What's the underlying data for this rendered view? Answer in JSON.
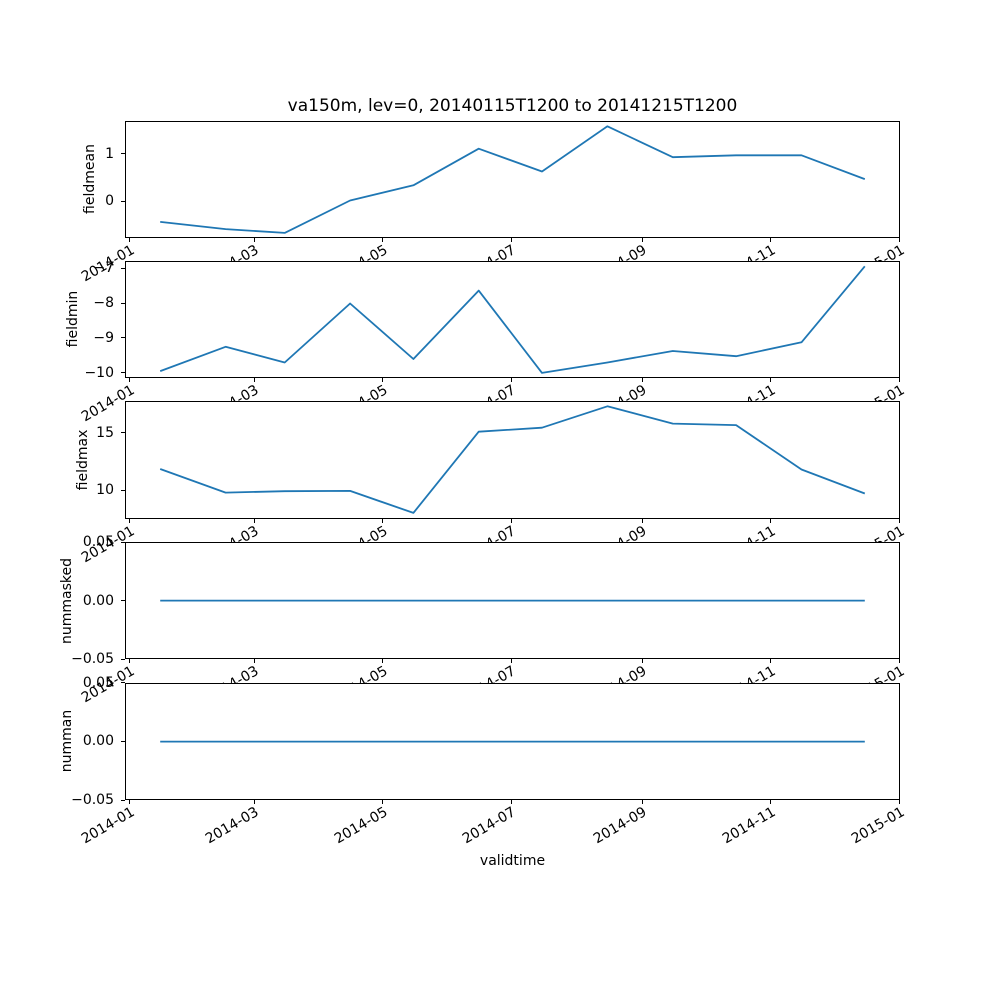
{
  "figure": {
    "title": "va150m, lev=0, 20140115T1200 to 20141215T1200",
    "xlabel": "validtime",
    "line_color": "#1f77b4"
  },
  "x_ticks": [
    {
      "date": "2014-01-01",
      "label": "2014-01"
    },
    {
      "date": "2014-03-01",
      "label": "2014-03"
    },
    {
      "date": "2014-05-01",
      "label": "2014-05"
    },
    {
      "date": "2014-07-01",
      "label": "2014-07"
    },
    {
      "date": "2014-09-01",
      "label": "2014-09"
    },
    {
      "date": "2014-11-01",
      "label": "2014-11"
    },
    {
      "date": "2015-01-01",
      "label": "2015-01"
    }
  ],
  "chart_data": [
    {
      "type": "line",
      "name": "fieldmean",
      "ylabel": "fieldmean",
      "x": [
        "2014-01-15T12:00",
        "2014-02-15T12:00",
        "2014-03-15T12:00",
        "2014-04-15T12:00",
        "2014-05-15T12:00",
        "2014-06-15T12:00",
        "2014-07-15T12:00",
        "2014-08-15T12:00",
        "2014-09-15T12:00",
        "2014-10-15T12:00",
        "2014-11-15T12:00",
        "2014-12-15T12:00"
      ],
      "values": [
        -0.43,
        -0.58,
        -0.66,
        0.02,
        0.34,
        1.11,
        0.63,
        1.58,
        0.93,
        0.97,
        0.97,
        0.47
      ],
      "yticks": [
        {
          "v": 1,
          "label": "1"
        },
        {
          "v": 0,
          "label": "0"
        }
      ]
    },
    {
      "type": "line",
      "name": "fieldmin",
      "ylabel": "fieldmin",
      "x": [
        "2014-01-15T12:00",
        "2014-02-15T12:00",
        "2014-03-15T12:00",
        "2014-04-15T12:00",
        "2014-05-15T12:00",
        "2014-06-15T12:00",
        "2014-07-15T12:00",
        "2014-08-15T12:00",
        "2014-09-15T12:00",
        "2014-10-15T12:00",
        "2014-11-15T12:00",
        "2014-12-15T12:00"
      ],
      "values": [
        -9.95,
        -9.25,
        -9.7,
        -8.0,
        -9.6,
        -7.63,
        -10.0,
        -9.7,
        -9.37,
        -9.52,
        -9.12,
        -6.93
      ],
      "yticks": [
        {
          "v": -7,
          "label": "−7"
        },
        {
          "v": -8,
          "label": "−8"
        },
        {
          "v": -9,
          "label": "−9"
        },
        {
          "v": -10,
          "label": "−10"
        }
      ]
    },
    {
      "type": "line",
      "name": "fieldmax",
      "ylabel": "fieldmax",
      "x": [
        "2014-01-15T12:00",
        "2014-02-15T12:00",
        "2014-03-15T12:00",
        "2014-04-15T12:00",
        "2014-05-15T12:00",
        "2014-06-15T12:00",
        "2014-07-15T12:00",
        "2014-08-15T12:00",
        "2014-09-15T12:00",
        "2014-10-15T12:00",
        "2014-11-15T12:00",
        "2014-12-15T12:00"
      ],
      "values": [
        11.82,
        9.78,
        9.9,
        9.92,
        8.02,
        15.05,
        15.4,
        17.25,
        15.75,
        15.62,
        11.78,
        9.7
      ],
      "yticks": [
        {
          "v": 15,
          "label": "15"
        },
        {
          "v": 10,
          "label": "10"
        }
      ]
    },
    {
      "type": "line",
      "name": "nummasked",
      "ylabel": "nummasked",
      "x": [
        "2014-01-15T12:00",
        "2014-02-15T12:00",
        "2014-03-15T12:00",
        "2014-04-15T12:00",
        "2014-05-15T12:00",
        "2014-06-15T12:00",
        "2014-07-15T12:00",
        "2014-08-15T12:00",
        "2014-09-15T12:00",
        "2014-10-15T12:00",
        "2014-11-15T12:00",
        "2014-12-15T12:00"
      ],
      "values": [
        0,
        0,
        0,
        0,
        0,
        0,
        0,
        0,
        0,
        0,
        0,
        0
      ],
      "yticks": [
        {
          "v": 0.05,
          "label": "0.05"
        },
        {
          "v": 0,
          "label": "0.00"
        },
        {
          "v": -0.05,
          "label": "−0.05"
        }
      ]
    },
    {
      "type": "line",
      "name": "numman",
      "ylabel": "numman",
      "x": [
        "2014-01-15T12:00",
        "2014-02-15T12:00",
        "2014-03-15T12:00",
        "2014-04-15T12:00",
        "2014-05-15T12:00",
        "2014-06-15T12:00",
        "2014-07-15T12:00",
        "2014-08-15T12:00",
        "2014-09-15T12:00",
        "2014-10-15T12:00",
        "2014-11-15T12:00",
        "2014-12-15T12:00"
      ],
      "values": [
        0,
        0,
        0,
        0,
        0,
        0,
        0,
        0,
        0,
        0,
        0,
        0
      ],
      "yticks": [
        {
          "v": 0.05,
          "label": "0.05"
        },
        {
          "v": 0,
          "label": "0.00"
        },
        {
          "v": -0.05,
          "label": "−0.05"
        }
      ]
    }
  ]
}
